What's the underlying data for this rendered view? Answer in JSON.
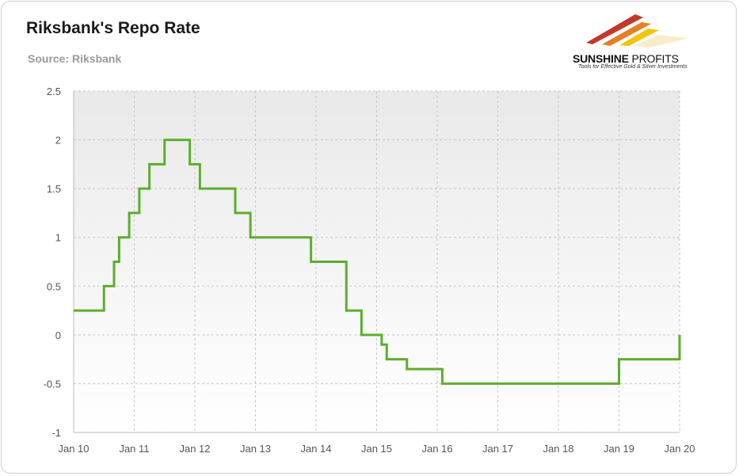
{
  "header": {
    "title": "Riksbank's Repo Rate",
    "subtitle": "Source: Riksbank"
  },
  "logo": {
    "name_bold": "SUNSHINE",
    "name_light": "PROFITS",
    "tagline": "Tools for Effective Gold & Silver Investments",
    "colors": [
      "#c0392b",
      "#e67e22",
      "#f1c40f"
    ]
  },
  "colors": {
    "line": "#5cae2c",
    "grid": "#c8c8c8",
    "plot_bg_top": "#e9e9e9",
    "plot_bg_bottom": "#ffffff"
  },
  "chart_data": {
    "type": "line",
    "step": true,
    "title": "Riksbank's Repo Rate",
    "subtitle": "Source: Riksbank",
    "xlabel": "",
    "ylabel": "",
    "ylim": [
      -1,
      2.5
    ],
    "xlim": [
      "2010-01",
      "2020-01"
    ],
    "grid": true,
    "legend": "none",
    "x_ticks": [
      "Jan 10",
      "Jan 11",
      "Jan 12",
      "Jan 13",
      "Jan 14",
      "Jan 15",
      "Jan 16",
      "Jan 17",
      "Jan 18",
      "Jan 19",
      "Jan 20"
    ],
    "y_ticks": [
      "2.5",
      "2",
      "1.5",
      "1",
      "0.5",
      "0",
      "-0.5",
      "-1"
    ],
    "series": [
      {
        "values": [
          {
            "x": "2010-01",
            "y": 0.25
          },
          {
            "x": "2010-07",
            "y": 0.5
          },
          {
            "x": "2010-09",
            "y": 0.75
          },
          {
            "x": "2010-10",
            "y": 1.0
          },
          {
            "x": "2010-12",
            "y": 1.25
          },
          {
            "x": "2011-02",
            "y": 1.5
          },
          {
            "x": "2011-04",
            "y": 1.75
          },
          {
            "x": "2011-07",
            "y": 2.0
          },
          {
            "x": "2011-12",
            "y": 1.75
          },
          {
            "x": "2012-02",
            "y": 1.5
          },
          {
            "x": "2012-09",
            "y": 1.25
          },
          {
            "x": "2012-12",
            "y": 1.0
          },
          {
            "x": "2013-12",
            "y": 0.75
          },
          {
            "x": "2014-07",
            "y": 0.25
          },
          {
            "x": "2014-10",
            "y": 0.0
          },
          {
            "x": "2015-02",
            "y": -0.1
          },
          {
            "x": "2015-03",
            "y": -0.25
          },
          {
            "x": "2015-07",
            "y": -0.35
          },
          {
            "x": "2016-02",
            "y": -0.5
          },
          {
            "x": "2019-01",
            "y": -0.25
          },
          {
            "x": "2020-01",
            "y": 0.0
          }
        ]
      }
    ]
  }
}
